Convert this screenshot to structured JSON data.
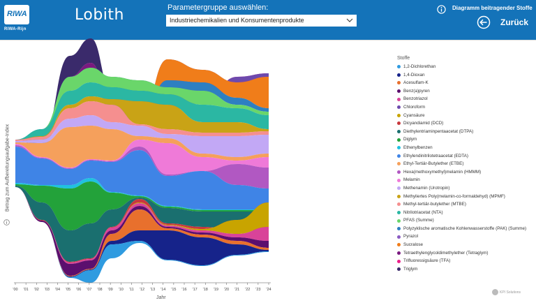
{
  "header": {
    "logo_text": "RIWA",
    "logo_sub": "RIWA-Rijn",
    "title": "Lobith",
    "param_label": "Parametergruppe auswählen:",
    "dropdown_value": "Industriechemikalien und Konsumentenprodukte",
    "info_text": "Diagramm beitragender Stoffe",
    "back_label": "Zurück"
  },
  "chart": {
    "y_axis_label": "Betrag zum Aufbereitungsaufgabe-Index",
    "x_axis_label": "Jahr",
    "x_ticks": [
      "'00",
      "'01",
      "'02",
      "'03",
      "'04",
      "'05",
      "'06",
      "'07",
      "'08",
      "'09",
      "'10",
      "'11",
      "'12",
      "'13",
      "'14",
      "'15",
      "'16",
      "'17",
      "'18",
      "'19",
      "'20",
      "'21",
      "'22",
      "'23",
      "'24"
    ]
  },
  "legend": {
    "title": "Stoffe",
    "items": [
      {
        "label": "1,2-Dichlorethan",
        "color": "#2f9be0"
      },
      {
        "label": "1,4-Dioxan",
        "color": "#16238a"
      },
      {
        "label": "Acesulfam-K",
        "color": "#e8702d"
      },
      {
        "label": "Benz(a)pyren",
        "color": "#5b0f6e"
      },
      {
        "label": "Benzotriazol",
        "color": "#d94399"
      },
      {
        "label": "Chloroform",
        "color": "#6d4aad"
      },
      {
        "label": "Cyansäure",
        "color": "#c8a400"
      },
      {
        "label": "Dicyandiamid (DCD)",
        "color": "#c8383d"
      },
      {
        "label": "Diethylentriaminpentaacetat (DTPA)",
        "color": "#1a6f6f"
      },
      {
        "label": "Diglym",
        "color": "#23a23a"
      },
      {
        "label": "Ethenylbenzen",
        "color": "#20c1e0"
      },
      {
        "label": "Ethylendinitrilotetraacetat (EDTA)",
        "color": "#3f84e6"
      },
      {
        "label": "Ethyl-Tertiär-Butylether (ETBE)",
        "color": "#f5a05c"
      },
      {
        "label": "Hexa(methoxymethyl)melamin (HMMM)",
        "color": "#b158c2"
      },
      {
        "label": "Melamin",
        "color": "#ef7ad8"
      },
      {
        "label": "Methenamin (Urotropin)",
        "color": "#c2a8f5"
      },
      {
        "label": "Methyliertes Poly(melamin-co-formaldehyd) (MPMF)",
        "color": "#c9a316"
      },
      {
        "label": "Methyl-tertiär-butylether (MTBE)",
        "color": "#f58f8f"
      },
      {
        "label": "Nitrilotriacetat (NTA)",
        "color": "#2bb7a3"
      },
      {
        "label": "PFAS (Summe)",
        "color": "#6ad66a"
      },
      {
        "label": "Polyzyklische aromatische Kohlenwasserstoffe (PAK) (Summe)",
        "color": "#2e7fc1"
      },
      {
        "label": "Pyrazol",
        "color": "#8a5bc2"
      },
      {
        "label": "Sucralose",
        "color": "#f07d1a"
      },
      {
        "label": "Tetraethylenglycoldimethylether (Tetraglym)",
        "color": "#7a1a80"
      },
      {
        "label": "Trifluoressigsäure (TFA)",
        "color": "#ec1f8a"
      },
      {
        "label": "Triglym",
        "color": "#3a2a6b"
      }
    ]
  },
  "footer": {
    "brand": "KPI Solutions"
  }
}
